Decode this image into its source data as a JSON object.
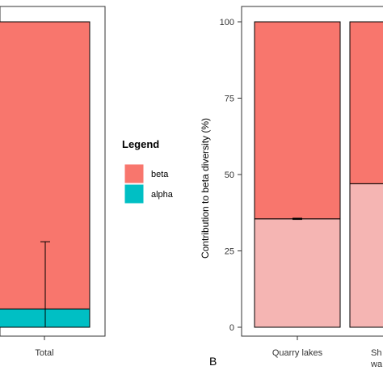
{
  "colors": {
    "beta": "#F8766D",
    "alpha": "#00BFC4",
    "beta_light": "#F5B5B3",
    "axis": "#333333",
    "text": "#333333"
  },
  "chart_data": [
    {
      "type": "bar",
      "stacked": true,
      "categories": [
        "Total"
      ],
      "series": [
        {
          "name": "alpha",
          "values": [
            6
          ]
        },
        {
          "name": "beta",
          "values": [
            94
          ]
        }
      ],
      "error_bar": {
        "category": "Total",
        "low": 0,
        "high": 28
      },
      "ylim": [
        0,
        100
      ],
      "legend": {
        "title": "Legend",
        "entries": [
          "beta",
          "alpha"
        ],
        "placement": "right"
      },
      "grid": false
    },
    {
      "type": "bar",
      "stacked": true,
      "panel_label": "B",
      "categories": [
        "Quarry lakes",
        "Sh... wa..."
      ],
      "category_tick_text": [
        [
          "Quarry lakes"
        ],
        [
          "Sh",
          "wa"
        ]
      ],
      "series": [
        {
          "values": [
            35.5,
            47
          ]
        },
        {
          "values": [
            64.5,
            53
          ]
        }
      ],
      "error_bar": {
        "category": "Quarry lakes",
        "low": 35.3,
        "high": 35.7
      },
      "ylabel": "Contribution to beta diversity (%)",
      "yticks": [
        "0",
        "25",
        "50",
        "75",
        "100"
      ],
      "ylim": [
        0,
        100
      ],
      "grid": false
    }
  ]
}
